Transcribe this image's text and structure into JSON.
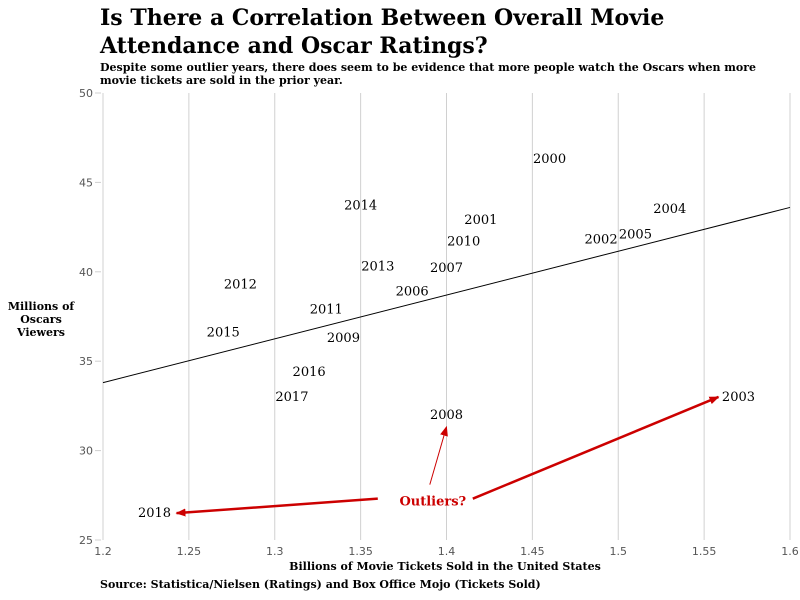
{
  "chart_data": {
    "type": "scatter",
    "title": "Is There a Correlation Between Overall Movie Attendance and Oscar Ratings?",
    "subtitle": "Despite some outlier years, there does seem to be evidence that more people watch the Oscars when more movie tickets are sold in the prior year.",
    "xlabel": "Billions of Movie Tickets Sold in the United States",
    "ylabel": "Millions of Oscars Viewers",
    "source": "Source: Statistica/Nielsen (Ratings) and Box Office Mojo (Tickets Sold)",
    "xlim": [
      1.2,
      1.6
    ],
    "ylim": [
      25,
      50
    ],
    "x_ticks": [
      "1.2",
      "1.25",
      "1.3",
      "1.35",
      "1.4",
      "1.45",
      "1.5",
      "1.55",
      "1.6"
    ],
    "y_ticks": [
      "25",
      "30",
      "35",
      "40",
      "45",
      "50"
    ],
    "grid": "vertical",
    "points": [
      {
        "label": "2000",
        "x": 1.46,
        "y": 46.3
      },
      {
        "label": "2001",
        "x": 1.42,
        "y": 42.9
      },
      {
        "label": "2002",
        "x": 1.49,
        "y": 41.8
      },
      {
        "label": "2003",
        "x": 1.57,
        "y": 33.0
      },
      {
        "label": "2004",
        "x": 1.53,
        "y": 43.5
      },
      {
        "label": "2005",
        "x": 1.51,
        "y": 42.1
      },
      {
        "label": "2006",
        "x": 1.38,
        "y": 38.9
      },
      {
        "label": "2007",
        "x": 1.4,
        "y": 40.2
      },
      {
        "label": "2008",
        "x": 1.4,
        "y": 32.0
      },
      {
        "label": "2009",
        "x": 1.34,
        "y": 36.3
      },
      {
        "label": "2010",
        "x": 1.41,
        "y": 41.7
      },
      {
        "label": "2011",
        "x": 1.33,
        "y": 37.9
      },
      {
        "label": "2012",
        "x": 1.28,
        "y": 39.3
      },
      {
        "label": "2013",
        "x": 1.36,
        "y": 40.3
      },
      {
        "label": "2014",
        "x": 1.35,
        "y": 43.7
      },
      {
        "label": "2015",
        "x": 1.27,
        "y": 36.6
      },
      {
        "label": "2016",
        "x": 1.32,
        "y": 34.4
      },
      {
        "label": "2017",
        "x": 1.31,
        "y": 33.0
      },
      {
        "label": "2018",
        "x": 1.23,
        "y": 26.5
      }
    ],
    "trendline": {
      "x": [
        1.2,
        1.6
      ],
      "y": [
        33.8,
        43.6
      ]
    },
    "annotation": {
      "text": "Outliers?",
      "color": "#cc0000",
      "anchor": {
        "x": 1.36,
        "y": 27.2
      },
      "targets": [
        "2018",
        "2008",
        "2003"
      ]
    }
  }
}
